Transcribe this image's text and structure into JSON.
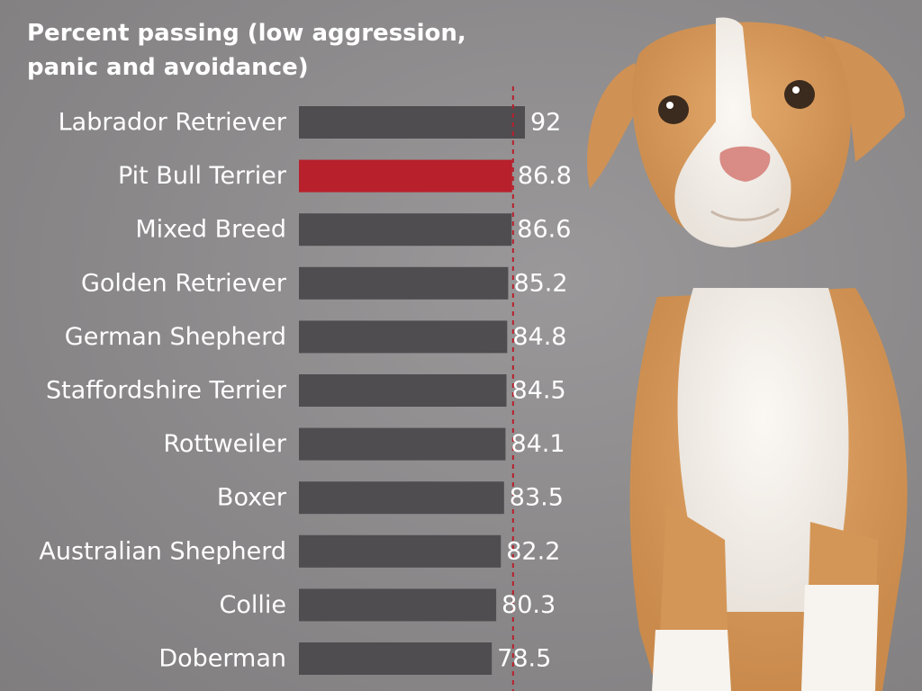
{
  "chart_data": {
    "type": "bar",
    "orientation": "horizontal",
    "title": "Percent passing (low aggression,\npanic and avoidance)",
    "categories": [
      "Labrador Retriever",
      "Pit Bull Terrier",
      "Mixed Breed",
      "Golden Retriever",
      "German Shepherd",
      "Staffordshire Terrier",
      "Rottweiler",
      "Boxer",
      "Australian Shepherd",
      "Collie",
      "Doberman"
    ],
    "values": [
      92,
      86.8,
      86.6,
      85.2,
      84.8,
      84.5,
      84.1,
      83.5,
      82.2,
      80.3,
      78.5
    ],
    "value_labels": [
      "92",
      "86.8",
      "86.6",
      "85.2",
      "84.8",
      "84.5",
      "84.1",
      "83.5",
      "82.2",
      "80.3",
      "78.5"
    ],
    "highlight_category": "Pit Bull Terrier",
    "reference_line_value": 86.8,
    "legend": "none",
    "grid": false
  },
  "colors": {
    "background": "#8d8b8c",
    "bar": "#4f4d50",
    "highlight_bar": "#b8202c",
    "reference_line": "#b8202c",
    "text": "#ffffff"
  },
  "image": {
    "subject": "puppy-photo"
  }
}
